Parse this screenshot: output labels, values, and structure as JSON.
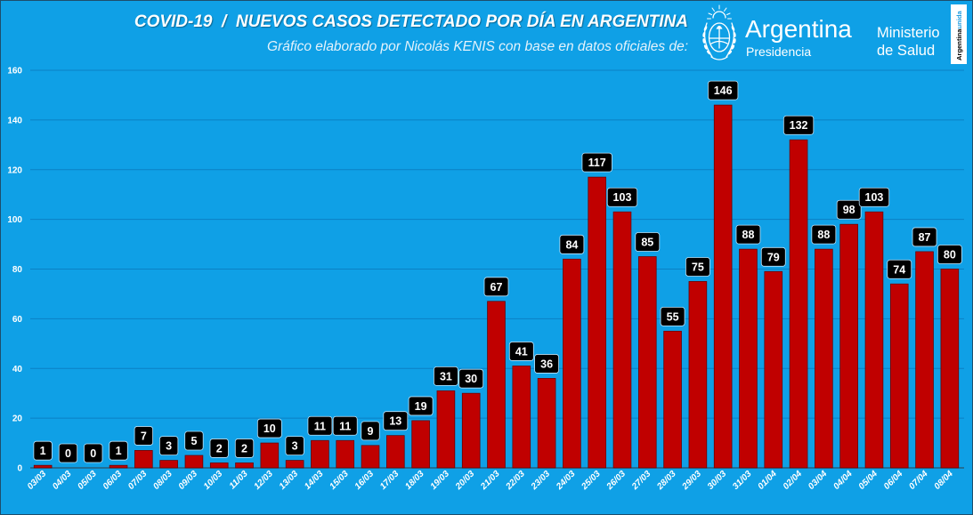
{
  "chart_data": {
    "type": "bar",
    "title": "COVID-19  /  NUEVOS CASOS DETECTADO POR DÍA EN ARGENTINA",
    "subtitle": "Gráfico elaborado por Nicolás KENIS con base en datos oficiales de:",
    "categories": [
      "03/03",
      "04/03",
      "05/03",
      "06/03",
      "07/03",
      "08/03",
      "09/03",
      "10/03",
      "11/03",
      "12/03",
      "13/03",
      "14/03",
      "15/03",
      "16/03",
      "17/03",
      "18/03",
      "19/03",
      "20/03",
      "21/03",
      "22/03",
      "23/03",
      "24/03",
      "25/03",
      "26/03",
      "27/03",
      "28/03",
      "29/03",
      "30/03",
      "31/03",
      "01/04",
      "02/04",
      "03/04",
      "04/04",
      "05/04",
      "06/04",
      "07/04",
      "08/04"
    ],
    "values": [
      1,
      0,
      0,
      1,
      7,
      3,
      5,
      2,
      2,
      10,
      3,
      11,
      11,
      9,
      13,
      19,
      31,
      30,
      67,
      41,
      36,
      84,
      117,
      103,
      85,
      55,
      75,
      146,
      88,
      79,
      132,
      88,
      98,
      103,
      74,
      87,
      80
    ],
    "ylim": [
      0,
      160
    ],
    "yticks": [
      0,
      20,
      40,
      60,
      80,
      100,
      120,
      140,
      160
    ],
    "grid": true,
    "data_labels": true
  },
  "logos": {
    "presidencia_name": "Argentina",
    "presidencia_sub": "Presidencia",
    "ministerio_line1": "Ministerio",
    "ministerio_line2": "de Salud",
    "badge_part1": "Argentina",
    "badge_part2": "unida"
  },
  "colors": {
    "background": "#0fa0e6",
    "bar": "#c00000",
    "bar_edge": "#6e0000",
    "data_label_box": "#000000",
    "text": "#ffffff",
    "gridline": "#0b80c4"
  }
}
